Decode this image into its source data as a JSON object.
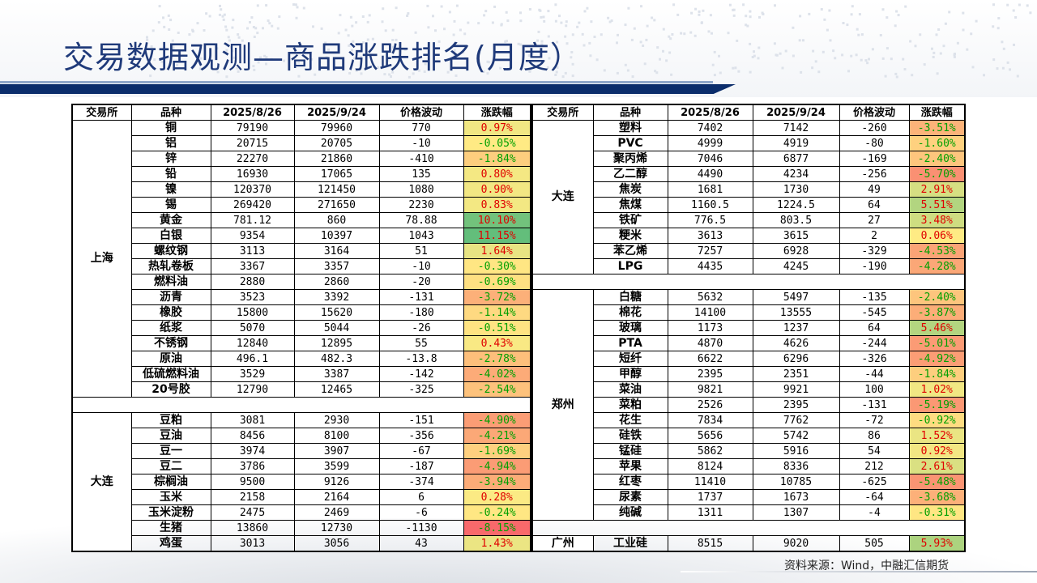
{
  "title": "交易数据观测—商品涨跌排名(月度）",
  "source": "资料来源：Wind，中融汇信期货",
  "headers": [
    "交易所",
    "品种",
    "2025/8/26",
    "2025/9/24",
    "价格波动",
    "涨跌幅"
  ],
  "left": {
    "groups": [
      {
        "exchange": "上海",
        "rows": [
          [
            "铜",
            "79190",
            "79960",
            "770",
            "0.97%"
          ],
          [
            "铝",
            "20715",
            "20705",
            "-10",
            "-0.05%"
          ],
          [
            "锌",
            "22270",
            "21860",
            "-410",
            "-1.84%"
          ],
          [
            "铅",
            "16930",
            "17065",
            "135",
            "0.80%"
          ],
          [
            "镍",
            "120370",
            "121450",
            "1080",
            "0.90%"
          ],
          [
            "锡",
            "269420",
            "271650",
            "2230",
            "0.83%"
          ],
          [
            "黄金",
            "781.12",
            "860",
            "78.88",
            "10.10%"
          ],
          [
            "白银",
            "9354",
            "10397",
            "1043",
            "11.15%"
          ],
          [
            "螺纹钢",
            "3113",
            "3164",
            "51",
            "1.64%"
          ],
          [
            "热轧卷板",
            "3367",
            "3357",
            "-10",
            "-0.30%"
          ],
          [
            "燃料油",
            "2880",
            "2860",
            "-20",
            "-0.69%"
          ],
          [
            "沥青",
            "3523",
            "3392",
            "-131",
            "-3.72%"
          ],
          [
            "橡胶",
            "15800",
            "15620",
            "-180",
            "-1.14%"
          ],
          [
            "纸浆",
            "5070",
            "5044",
            "-26",
            "-0.51%"
          ],
          [
            "不锈钢",
            "12840",
            "12895",
            "55",
            "0.43%"
          ],
          [
            "原油",
            "496.1",
            "482.3",
            "-13.8",
            "-2.78%"
          ],
          [
            "低硫燃料油",
            "3529",
            "3387",
            "-142",
            "-4.02%"
          ],
          [
            "20号胶",
            "12790",
            "12465",
            "-325",
            "-2.54%"
          ]
        ]
      },
      {
        "exchange": "大连",
        "rows": [
          [
            "豆粕",
            "3081",
            "2930",
            "-151",
            "-4.90%"
          ],
          [
            "豆油",
            "8456",
            "8100",
            "-356",
            "-4.21%"
          ],
          [
            "豆一",
            "3974",
            "3907",
            "-67",
            "-1.69%"
          ],
          [
            "豆二",
            "3786",
            "3599",
            "-187",
            "-4.94%"
          ],
          [
            "棕榈油",
            "9500",
            "9126",
            "-374",
            "-3.94%"
          ],
          [
            "玉米",
            "2158",
            "2164",
            "6",
            "0.28%"
          ],
          [
            "玉米淀粉",
            "2475",
            "2469",
            "-6",
            "-0.24%"
          ],
          [
            "生猪",
            "13860",
            "12730",
            "-1130",
            "-8.15%"
          ],
          [
            "鸡蛋",
            "3013",
            "3056",
            "43",
            "1.43%"
          ]
        ]
      }
    ]
  },
  "right": {
    "groups": [
      {
        "exchange": "大连",
        "rows": [
          [
            "塑料",
            "7402",
            "7142",
            "-260",
            "-3.51%"
          ],
          [
            "PVC",
            "4999",
            "4919",
            "-80",
            "-1.60%"
          ],
          [
            "聚丙烯",
            "7046",
            "6877",
            "-169",
            "-2.40%"
          ],
          [
            "乙二醇",
            "4490",
            "4234",
            "-256",
            "-5.70%"
          ],
          [
            "焦炭",
            "1681",
            "1730",
            "49",
            "2.91%"
          ],
          [
            "焦煤",
            "1160.5",
            "1224.5",
            "64",
            "5.51%"
          ],
          [
            "铁矿",
            "776.5",
            "803.5",
            "27",
            "3.48%"
          ],
          [
            "粳米",
            "3613",
            "3615",
            "2",
            "0.06%"
          ],
          [
            "苯乙烯",
            "7257",
            "6928",
            "-329",
            "-4.53%"
          ],
          [
            "LPG",
            "4435",
            "4245",
            "-190",
            "-4.28%"
          ]
        ]
      },
      {
        "exchange": "郑州",
        "rows": [
          [
            "白糖",
            "5632",
            "5497",
            "-135",
            "-2.40%"
          ],
          [
            "棉花",
            "14100",
            "13555",
            "-545",
            "-3.87%"
          ],
          [
            "玻璃",
            "1173",
            "1237",
            "64",
            "5.46%"
          ],
          [
            "PTA",
            "4870",
            "4626",
            "-244",
            "-5.01%"
          ],
          [
            "短纤",
            "6622",
            "6296",
            "-326",
            "-4.92%"
          ],
          [
            "甲醇",
            "2395",
            "2351",
            "-44",
            "-1.84%"
          ],
          [
            "菜油",
            "9821",
            "9921",
            "100",
            "1.02%"
          ],
          [
            "菜粕",
            "2526",
            "2395",
            "-131",
            "-5.19%"
          ],
          [
            "花生",
            "7834",
            "7762",
            "-72",
            "-0.92%"
          ],
          [
            "硅铁",
            "5656",
            "5742",
            "86",
            "1.52%"
          ],
          [
            "锰硅",
            "5862",
            "5916",
            "54",
            "0.92%"
          ],
          [
            "苹果",
            "8124",
            "8336",
            "212",
            "2.61%"
          ],
          [
            "红枣",
            "11410",
            "10785",
            "-625",
            "-5.48%"
          ],
          [
            "尿素",
            "1737",
            "1673",
            "-64",
            "-3.68%"
          ],
          [
            "纯碱",
            "1311",
            "1307",
            "-4",
            "-0.31%"
          ]
        ]
      },
      {
        "exchange": "广州",
        "rows": [
          [
            "工业硅",
            "8515",
            "9020",
            "505",
            "5.93%"
          ]
        ]
      }
    ]
  },
  "colors": {
    "title": "#1f3a7a",
    "pos_text": "#e00000",
    "neg_text": "#00a000",
    "scale_min": "#f8696b",
    "scale_mid": "#ffeb84",
    "scale_max": "#63be7b"
  }
}
